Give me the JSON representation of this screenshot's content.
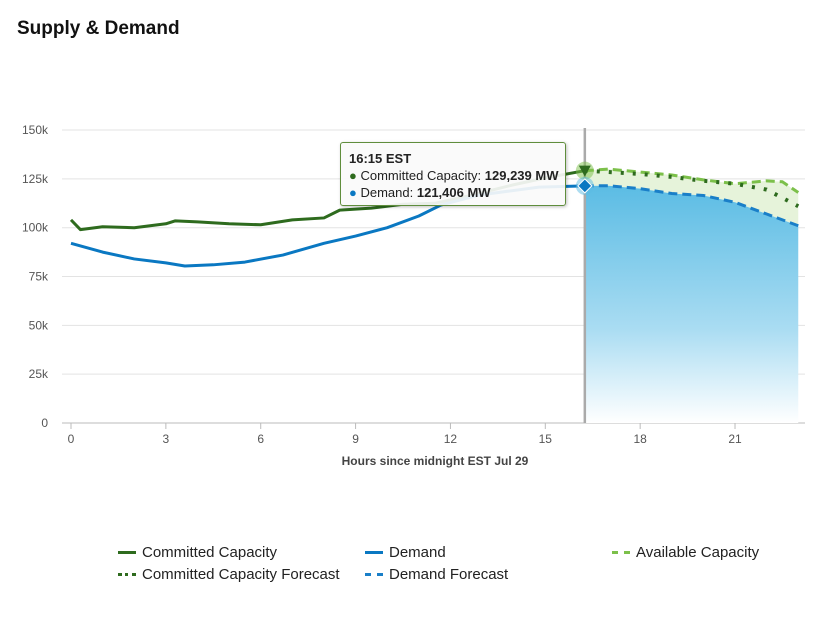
{
  "title": "Supply & Demand",
  "tooltip": {
    "time": "16:15 EST",
    "committed_label": "Committed Capacity:",
    "committed_value": "129,239 MW",
    "demand_label": "Demand:",
    "demand_value": "121,406 MW"
  },
  "colors": {
    "committed": "#2e6b1e",
    "demand": "#0a78c2",
    "available": "#7cc04a",
    "forecast_fill": "#5bbce4"
  },
  "chart_data": {
    "type": "line",
    "xlabel": "Hours since midnight EST Jul 29",
    "ylabel": "",
    "xlim": [
      -0.3,
      23
    ],
    "ylim": [
      0,
      150
    ],
    "xticks": [
      0,
      3,
      6,
      9,
      12,
      15,
      18,
      21
    ],
    "yticks": [
      {
        "v": 0,
        "l": "0"
      },
      {
        "v": 25,
        "l": "25k"
      },
      {
        "v": 50,
        "l": "50k"
      },
      {
        "v": 75,
        "l": "75k"
      },
      {
        "v": 100,
        "l": "100k"
      },
      {
        "v": 125,
        "l": "125k"
      },
      {
        "v": 150,
        "l": "150k"
      }
    ],
    "cursor_x": 16.25,
    "series": [
      {
        "name": "Committed Capacity",
        "style": "solid",
        "color": "#2e6b1e",
        "points": [
          [
            0,
            104
          ],
          [
            0.3,
            99
          ],
          [
            1,
            100.5
          ],
          [
            2,
            100
          ],
          [
            3,
            102
          ],
          [
            3.3,
            103.5
          ],
          [
            4,
            103
          ],
          [
            5,
            102
          ],
          [
            6,
            101.5
          ],
          [
            7,
            104
          ],
          [
            8,
            105
          ],
          [
            8.5,
            109
          ],
          [
            9.5,
            110
          ],
          [
            10.5,
            112
          ],
          [
            11.5,
            112.5
          ],
          [
            12.5,
            116
          ],
          [
            14,
            122
          ],
          [
            15,
            125.5
          ],
          [
            16.25,
            129.2
          ]
        ]
      },
      {
        "name": "Demand",
        "style": "solid",
        "color": "#0a78c2",
        "points": [
          [
            0,
            92
          ],
          [
            1,
            87.5
          ],
          [
            2,
            84
          ],
          [
            3,
            82
          ],
          [
            3.6,
            80.4
          ],
          [
            4.5,
            81
          ],
          [
            5.5,
            82.4
          ],
          [
            6.7,
            86
          ],
          [
            8,
            92
          ],
          [
            9,
            95.7
          ],
          [
            10,
            100
          ],
          [
            11,
            106
          ],
          [
            11.7,
            111.6
          ],
          [
            12.9,
            116.7
          ],
          [
            14.8,
            120.8
          ],
          [
            16.25,
            121.4
          ]
        ]
      },
      {
        "name": "Available Capacity",
        "style": "dash",
        "color": "#7cc04a",
        "points": [
          [
            16.25,
            129.2
          ],
          [
            17,
            130
          ],
          [
            18,
            128.5
          ],
          [
            19,
            127
          ],
          [
            20,
            124.5
          ],
          [
            21,
            122.5
          ],
          [
            22,
            124
          ],
          [
            22.5,
            123.5
          ],
          [
            23,
            118
          ]
        ]
      },
      {
        "name": "Committed Capacity Forecast",
        "style": "dot",
        "color": "#2e6b1e",
        "points": [
          [
            16.25,
            129.2
          ],
          [
            17,
            128.5
          ],
          [
            18,
            127.5
          ],
          [
            19,
            126
          ],
          [
            20,
            124
          ],
          [
            21,
            122.5
          ],
          [
            22,
            119.5
          ],
          [
            23,
            111
          ]
        ]
      },
      {
        "name": "Demand Forecast",
        "style": "dash",
        "color": "#1a7fc8",
        "points": [
          [
            16.25,
            121.4
          ],
          [
            17,
            121.5
          ],
          [
            18,
            120
          ],
          [
            19,
            117.5
          ],
          [
            20,
            116.5
          ],
          [
            21,
            113
          ],
          [
            22,
            107
          ],
          [
            23,
            101
          ]
        ]
      }
    ]
  },
  "legend": [
    "Committed Capacity",
    "Demand",
    "Available Capacity",
    "Committed Capacity Forecast",
    "Demand Forecast"
  ]
}
